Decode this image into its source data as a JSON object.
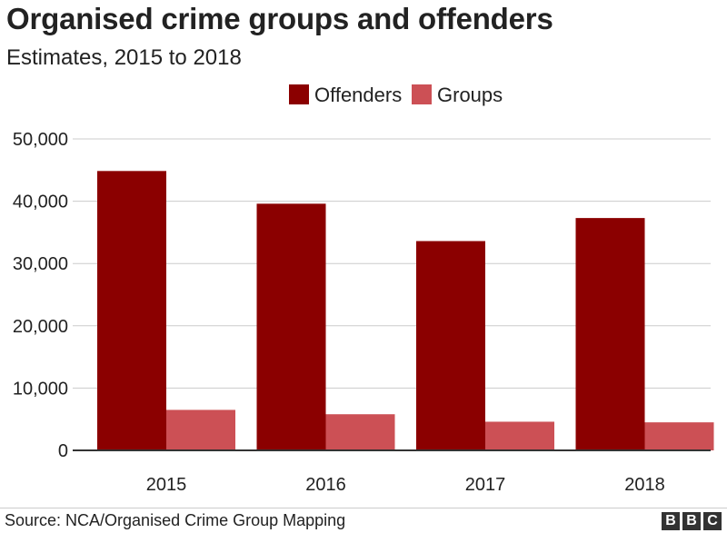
{
  "chart_data": {
    "type": "bar",
    "title": "Organised crime groups and offenders",
    "subtitle": "Estimates, 2015 to 2018",
    "categories": [
      "2015",
      "2016",
      "2017",
      "2018"
    ],
    "series": [
      {
        "name": "Offenders",
        "color": "#8b0000",
        "values": [
          44850,
          39600,
          33600,
          37300
        ]
      },
      {
        "name": "Groups",
        "color": "#cc5055",
        "values": [
          6500,
          5800,
          4600,
          4500
        ]
      }
    ],
    "ylim": [
      0,
      50000
    ],
    "yticks": [
      0,
      10000,
      20000,
      30000,
      40000,
      50000
    ],
    "ytick_labels": [
      "0",
      "10,000",
      "20,000",
      "30,000",
      "40,000",
      "50,000"
    ],
    "grid": true,
    "legend_position": "top-center"
  },
  "footer": {
    "source": "Source: NCA/Organised Crime Group Mapping",
    "logo": [
      "B",
      "B",
      "C"
    ]
  }
}
